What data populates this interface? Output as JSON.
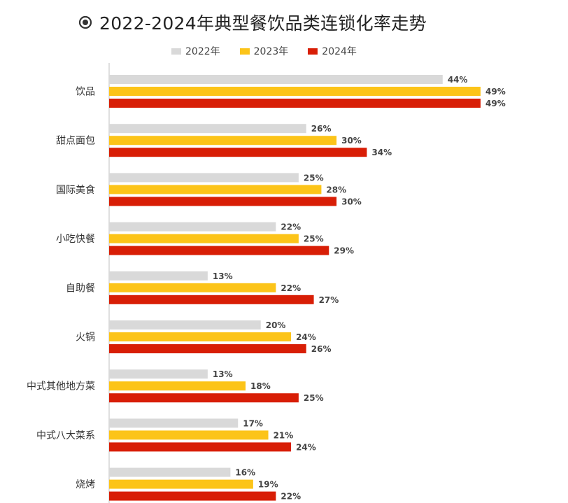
{
  "chart_data": {
    "type": "bar",
    "orientation": "horizontal",
    "title": "2022-2024年典型餐饮品类连锁化率走势",
    "xlabel": "",
    "ylabel": "",
    "xlim": [
      0,
      50
    ],
    "grid": false,
    "legend_position": "top-center",
    "unit_suffix": "%",
    "categories": [
      "饮品",
      "甜点面包",
      "国际美食",
      "小吃快餐",
      "自助餐",
      "火锅",
      "中式其他地方菜",
      "中式八大菜系",
      "烧烤"
    ],
    "series": [
      {
        "name": "2022年",
        "color": "#d9d9d9",
        "values": [
          44,
          26,
          25,
          22,
          13,
          20,
          13,
          17,
          16
        ]
      },
      {
        "name": "2023年",
        "color": "#fcc419",
        "values": [
          49,
          30,
          28,
          25,
          22,
          24,
          18,
          21,
          19
        ]
      },
      {
        "name": "2024年",
        "color": "#d81e06",
        "values": [
          49,
          34,
          30,
          29,
          27,
          26,
          25,
          24,
          22
        ]
      }
    ]
  }
}
